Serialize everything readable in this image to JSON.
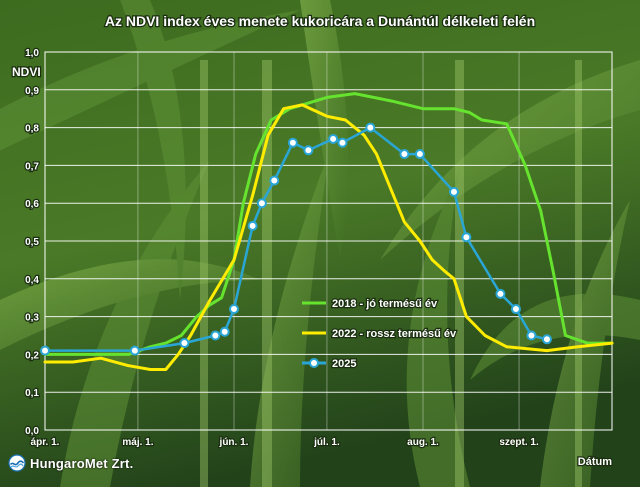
{
  "chart_data": {
    "type": "line",
    "title": "Az NDVI index éves menete kukoricára a Dunántúl délkeleti felén",
    "ylabel": "NDVI",
    "xlabel": "Dátum",
    "ylim": [
      0,
      1
    ],
    "yticks": [
      "0,0",
      "0,1",
      "0,2",
      "0,3",
      "0,4",
      "0,5",
      "0,6",
      "0,7",
      "0,8",
      "0,9",
      "1,0"
    ],
    "xlim": [
      "2025-04-01",
      "2025-10-01"
    ],
    "xticks": [
      {
        "date": "2025-04-01",
        "label": "ápr. 1."
      },
      {
        "date": "2025-05-01",
        "label": "máj. 1."
      },
      {
        "date": "2025-06-01",
        "label": "jún. 1."
      },
      {
        "date": "2025-07-01",
        "label": "júl. 1."
      },
      {
        "date": "2025-08-01",
        "label": "aug. 1."
      },
      {
        "date": "2025-09-01",
        "label": "szept. 1."
      }
    ],
    "grid": true,
    "legend": "center-right",
    "series": [
      {
        "name": "2018 - jó termésű év",
        "color": "#66e32e",
        "markers": false,
        "points": [
          {
            "x": "2025-04-01",
            "y": 0.2
          },
          {
            "x": "2025-04-11",
            "y": 0.2
          },
          {
            "x": "2025-04-21",
            "y": 0.2
          },
          {
            "x": "2025-04-28",
            "y": 0.2
          },
          {
            "x": "2025-05-05",
            "y": 0.22
          },
          {
            "x": "2025-05-10",
            "y": 0.23
          },
          {
            "x": "2025-05-15",
            "y": 0.25
          },
          {
            "x": "2025-05-20",
            "y": 0.3
          },
          {
            "x": "2025-05-24",
            "y": 0.33
          },
          {
            "x": "2025-05-28",
            "y": 0.35
          },
          {
            "x": "2025-06-01",
            "y": 0.45
          },
          {
            "x": "2025-06-04",
            "y": 0.6
          },
          {
            "x": "2025-06-08",
            "y": 0.73
          },
          {
            "x": "2025-06-13",
            "y": 0.82
          },
          {
            "x": "2025-06-19",
            "y": 0.85
          },
          {
            "x": "2025-07-01",
            "y": 0.88
          },
          {
            "x": "2025-07-10",
            "y": 0.89
          },
          {
            "x": "2025-07-22",
            "y": 0.87
          },
          {
            "x": "2025-08-01",
            "y": 0.85
          },
          {
            "x": "2025-08-11",
            "y": 0.85
          },
          {
            "x": "2025-08-16",
            "y": 0.84
          },
          {
            "x": "2025-08-20",
            "y": 0.82
          },
          {
            "x": "2025-08-28",
            "y": 0.81
          },
          {
            "x": "2025-09-03",
            "y": 0.7
          },
          {
            "x": "2025-09-08",
            "y": 0.58
          },
          {
            "x": "2025-09-12",
            "y": 0.42
          },
          {
            "x": "2025-09-16",
            "y": 0.25
          },
          {
            "x": "2025-09-23",
            "y": 0.23
          },
          {
            "x": "2025-10-01",
            "y": 0.23
          }
        ]
      },
      {
        "name": "2022 - rossz termésű év",
        "color": "#ffec00",
        "markers": false,
        "points": [
          {
            "x": "2025-04-01",
            "y": 0.18
          },
          {
            "x": "2025-04-10",
            "y": 0.18
          },
          {
            "x": "2025-04-19",
            "y": 0.19
          },
          {
            "x": "2025-04-28",
            "y": 0.17
          },
          {
            "x": "2025-05-05",
            "y": 0.16
          },
          {
            "x": "2025-05-10",
            "y": 0.16
          },
          {
            "x": "2025-05-14",
            "y": 0.2
          },
          {
            "x": "2025-05-18",
            "y": 0.25
          },
          {
            "x": "2025-05-24",
            "y": 0.34
          },
          {
            "x": "2025-06-01",
            "y": 0.45
          },
          {
            "x": "2025-06-07",
            "y": 0.62
          },
          {
            "x": "2025-06-12",
            "y": 0.78
          },
          {
            "x": "2025-06-17",
            "y": 0.85
          },
          {
            "x": "2025-06-23",
            "y": 0.86
          },
          {
            "x": "2025-07-01",
            "y": 0.83
          },
          {
            "x": "2025-07-07",
            "y": 0.82
          },
          {
            "x": "2025-07-13",
            "y": 0.78
          },
          {
            "x": "2025-07-17",
            "y": 0.73
          },
          {
            "x": "2025-07-22",
            "y": 0.63
          },
          {
            "x": "2025-07-26",
            "y": 0.55
          },
          {
            "x": "2025-07-31",
            "y": 0.5
          },
          {
            "x": "2025-08-04",
            "y": 0.45
          },
          {
            "x": "2025-08-08",
            "y": 0.42
          },
          {
            "x": "2025-08-11",
            "y": 0.4
          },
          {
            "x": "2025-08-15",
            "y": 0.3
          },
          {
            "x": "2025-08-21",
            "y": 0.25
          },
          {
            "x": "2025-08-28",
            "y": 0.22
          },
          {
            "x": "2025-09-10",
            "y": 0.21
          },
          {
            "x": "2025-09-20",
            "y": 0.22
          },
          {
            "x": "2025-10-01",
            "y": 0.23
          }
        ]
      },
      {
        "name": "2025",
        "color": "#2aa6d6",
        "markers": true,
        "points": [
          {
            "x": "2025-04-01",
            "y": 0.21
          },
          {
            "x": "2025-04-30",
            "y": 0.21
          },
          {
            "x": "2025-05-16",
            "y": 0.23
          },
          {
            "x": "2025-05-26",
            "y": 0.25
          },
          {
            "x": "2025-05-29",
            "y": 0.26
          },
          {
            "x": "2025-06-01",
            "y": 0.32
          },
          {
            "x": "2025-06-07",
            "y": 0.54
          },
          {
            "x": "2025-06-10",
            "y": 0.6
          },
          {
            "x": "2025-06-14",
            "y": 0.66
          },
          {
            "x": "2025-06-20",
            "y": 0.76
          },
          {
            "x": "2025-06-25",
            "y": 0.74
          },
          {
            "x": "2025-07-03",
            "y": 0.77
          },
          {
            "x": "2025-07-06",
            "y": 0.76
          },
          {
            "x": "2025-07-15",
            "y": 0.8
          },
          {
            "x": "2025-07-26",
            "y": 0.73
          },
          {
            "x": "2025-07-31",
            "y": 0.73
          },
          {
            "x": "2025-08-11",
            "y": 0.63
          },
          {
            "x": "2025-08-15",
            "y": 0.51
          },
          {
            "x": "2025-08-26",
            "y": 0.36
          },
          {
            "x": "2025-08-31",
            "y": 0.32
          },
          {
            "x": "2025-09-05",
            "y": 0.25
          },
          {
            "x": "2025-09-10",
            "y": 0.24
          }
        ]
      }
    ]
  },
  "logo": {
    "text": "HungaroMet Zrt.",
    "mark": "hungaromet-logo-icon"
  }
}
